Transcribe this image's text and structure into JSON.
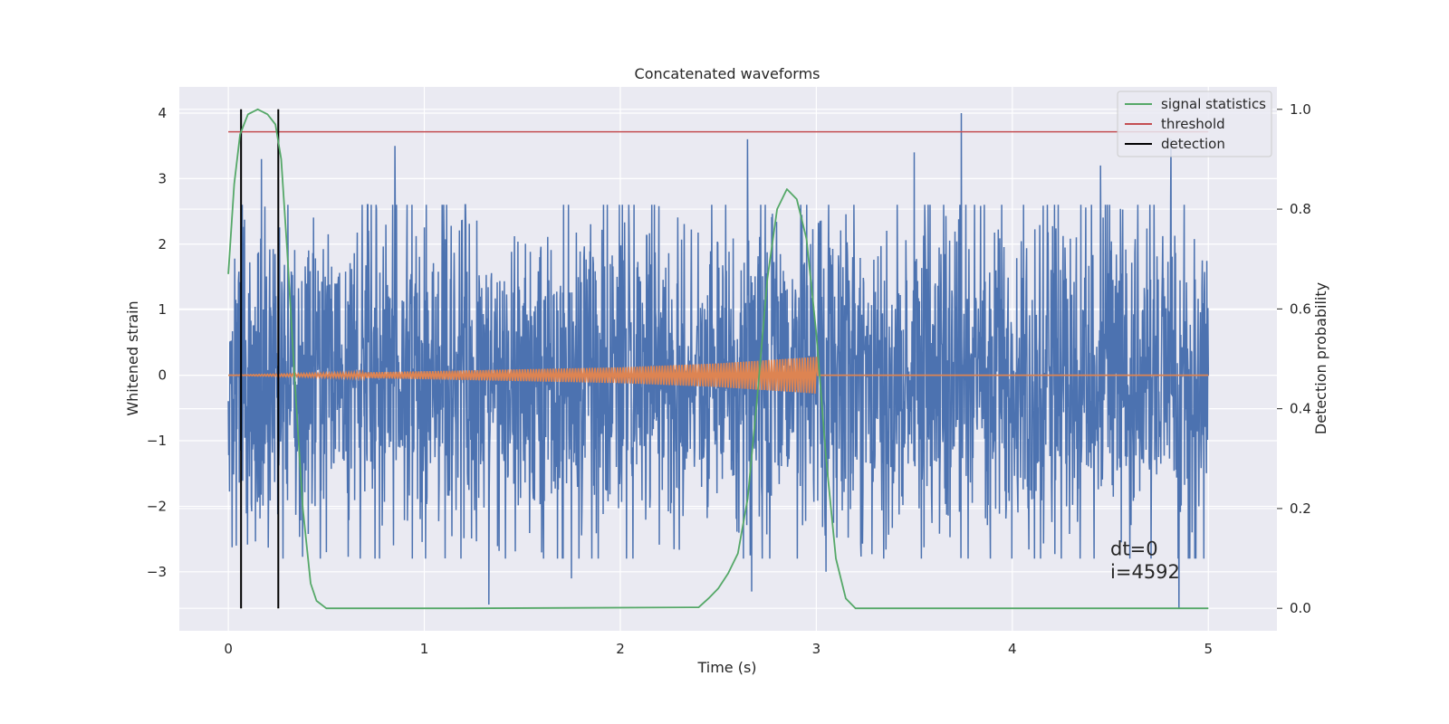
{
  "chart_data": {
    "type": "line",
    "title": "Concatenated waveforms",
    "xlabel": "Time (s)",
    "ylabel": "Whitened strain",
    "y2label": "Detection probability",
    "xlim": [
      -0.25,
      5.35
    ],
    "ylim": [
      -3.9,
      4.4
    ],
    "y2lim": [
      -0.045,
      1.045
    ],
    "xticks": [
      0,
      1,
      2,
      3,
      4,
      5
    ],
    "yticks": [
      -3,
      -2,
      -1,
      0,
      1,
      2,
      3,
      4
    ],
    "y2ticks": [
      0.0,
      0.2,
      0.4,
      0.6,
      0.8,
      1.0
    ],
    "xtick_labels": [
      "0",
      "1",
      "2",
      "3",
      "4",
      "5"
    ],
    "ytick_labels": [
      "−3",
      "−2",
      "−1",
      "0",
      "1",
      "2",
      "3",
      "4"
    ],
    "y2tick_labels": [
      "0.0",
      "0.2",
      "0.4",
      "0.6",
      "0.8",
      "1.0"
    ],
    "grid": true,
    "legend_position": "top-right",
    "background_color": "#EAEAF2",
    "colors": {
      "strain": "#4C72B0",
      "injection": "#DD8452",
      "statistics": "#55A868",
      "threshold": "#C44E52",
      "detection": "#000000"
    },
    "series": [
      {
        "key": "strain",
        "axis": "left",
        "description_role": "noisy whitened strain",
        "x_range": [
          0,
          5
        ],
        "mean": 0,
        "typical_amplitude": 1.5,
        "spikes": [
          [
            0.17,
            3.3
          ],
          [
            0.85,
            3.5
          ],
          [
            1.33,
            -3.5
          ],
          [
            1.75,
            -3.1
          ],
          [
            2.65,
            3.6
          ],
          [
            2.67,
            -3.3
          ],
          [
            3.05,
            -3.0
          ],
          [
            3.5,
            3.4
          ],
          [
            3.74,
            4.0
          ],
          [
            4.45,
            3.2
          ],
          [
            4.81,
            3.6
          ],
          [
            4.85,
            -3.55
          ],
          [
            0.04,
            -2.6
          ],
          [
            0.5,
            -2.7
          ]
        ]
      },
      {
        "key": "injection",
        "axis": "left",
        "description_role": "injected chirp",
        "x": [
          0,
          2,
          2.5,
          3,
          3.001,
          5
        ],
        "amplitude": [
          0,
          0.12,
          0.18,
          0.28,
          0,
          0
        ]
      },
      {
        "name": "signal statistics",
        "key": "statistics",
        "axis": "right",
        "x": [
          0,
          0.03,
          0.06,
          0.1,
          0.15,
          0.2,
          0.24,
          0.27,
          0.3,
          0.34,
          0.38,
          0.42,
          0.45,
          0.5,
          1.2,
          2.4,
          2.45,
          2.5,
          2.55,
          2.6,
          2.65,
          2.7,
          2.75,
          2.8,
          2.85,
          2.9,
          2.95,
          3.0,
          3.05,
          3.1,
          3.15,
          3.2,
          5.0
        ],
        "y": [
          0.67,
          0.85,
          0.95,
          0.99,
          1.0,
          0.99,
          0.97,
          0.9,
          0.72,
          0.45,
          0.2,
          0.05,
          0.015,
          0.0,
          0.0,
          0.002,
          0.02,
          0.04,
          0.07,
          0.11,
          0.22,
          0.43,
          0.66,
          0.8,
          0.84,
          0.82,
          0.74,
          0.55,
          0.3,
          0.1,
          0.02,
          0.0,
          0.0
        ]
      },
      {
        "name": "threshold",
        "key": "threshold",
        "axis": "right",
        "x": [
          0,
          5
        ],
        "y": [
          0.955,
          0.955
        ]
      },
      {
        "name": "detection",
        "key": "detection",
        "axis": "right",
        "type": "vlines",
        "x": [
          0.065,
          0.255
        ],
        "y": [
          0.0,
          1.0
        ]
      }
    ],
    "legend": [
      "signal statistics",
      "threshold",
      "detection"
    ],
    "annotations": [
      {
        "key": "dt",
        "text": "dt=0",
        "x": 4.5,
        "y": -2.75
      },
      {
        "key": "i",
        "text": "i=4592",
        "x": 4.5,
        "y": -3.1
      }
    ]
  }
}
